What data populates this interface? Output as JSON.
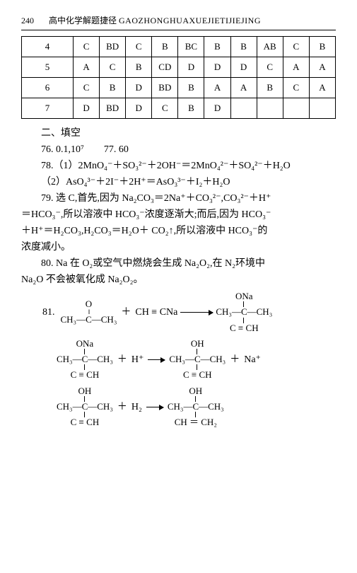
{
  "header": {
    "page_number": "240",
    "title": "高中化学解题捷径",
    "pinyin": "GAOZHONGHUAXUEJIETIJIEJING"
  },
  "table": {
    "rows": [
      {
        "label": "4",
        "cells": [
          "C",
          "BD",
          "C",
          "B",
          "BC",
          "B",
          "B",
          "AB",
          "C",
          "B"
        ]
      },
      {
        "label": "5",
        "cells": [
          "A",
          "C",
          "B",
          "CD",
          "D",
          "D",
          "D",
          "C",
          "A",
          "A"
        ]
      },
      {
        "label": "6",
        "cells": [
          "C",
          "B",
          "D",
          "BD",
          "B",
          "A",
          "A",
          "B",
          "C",
          "A"
        ]
      },
      {
        "label": "7",
        "cells": [
          "D",
          "BD",
          "D",
          "C",
          "B",
          "D",
          "",
          "",
          "",
          ""
        ]
      }
    ]
  },
  "section2_heading": "二、填空",
  "q76_77": "76. 0.1,10⁷　　77. 60",
  "q78": {
    "line1_label": "78.（1）",
    "line1_eq": "2MnO₄⁻＋SO₃²⁻＋2OH⁻＝2MnO₄²⁻＋SO₄²⁻＋H₂O",
    "line2_label": "（2）",
    "line2_eq": "AsO₄³⁻＋2I⁻＋2H⁺＝AsO₃³⁻＋I₂＋H₂O"
  },
  "q79": {
    "p1a": "79. 选 C,首先,因为 Na₂CO₃＝2Na⁺＋CO₃²⁻,CO₃²⁻＋H⁺",
    "p1b": "＝HCO₃⁻,所以溶液中 HCO₃⁻浓度逐渐大;而后,因为 HCO₃⁻",
    "p1c": "＋H⁺＝H₂CO₃,H₂CO₃＝H₂O＋ CO₂↑,所以溶液中 HCO₃⁻的",
    "p1d": "浓度减小。"
  },
  "q80": {
    "p1a": "80. Na 在 O₂或空气中燃烧会生成 Na₂O₂,在 N₂环境中",
    "p1b": "Na₂O 不会被氧化成 Na₂O₂。"
  },
  "q81": {
    "label": "81.",
    "r1": {
      "s1_top": "O",
      "s1_mid": "CH₃—C—CH₃",
      "s1_bot": "",
      "plus1": "＋",
      "piece2": "CH ≡ CNa",
      "s3_top": "ONa",
      "s3_mid": "CH₃—C—CH₃",
      "s3_bot": "C ≡ CH"
    },
    "r2": {
      "s1_top": "ONa",
      "s1_mid": "CH₃—C—CH₃",
      "s1_bot": "C ≡ CH",
      "plus1": "＋",
      "piece2": "H⁺",
      "s3_top": "OH",
      "s3_mid": "CH₃—C—CH₃",
      "s3_bot": "C ≡ CH",
      "plus2": "＋",
      "piece4": "Na⁺"
    },
    "r3": {
      "s1_top": "OH",
      "s1_mid": "CH₃—C—CH₃",
      "s1_bot": "C ≡ CH",
      "plus1": "＋",
      "piece2": "H₂",
      "s3_top": "OH",
      "s3_mid": "CH₃—C—CH₃",
      "s3_bot": "CH ＝ CH₂"
    }
  }
}
